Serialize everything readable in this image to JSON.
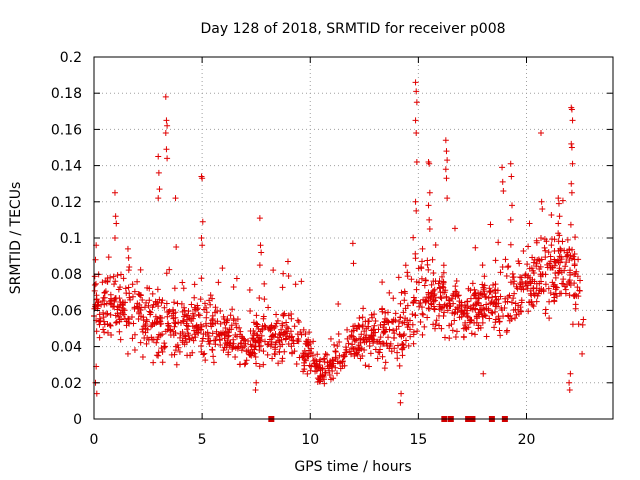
{
  "chart_data": {
    "type": "scatter",
    "title": "Day 128 of 2018, SRMTID for receiver p008",
    "xlabel": "GPS time / hours",
    "ylabel": "SRMTID / TECUs",
    "xlim": [
      0,
      24
    ],
    "ylim": [
      0,
      0.2
    ],
    "x_ticks": [
      0,
      5,
      10,
      15,
      20
    ],
    "x_tick_labels": [
      "0",
      "5",
      "10",
      "15",
      "20"
    ],
    "y_ticks": [
      0,
      0.02,
      0.04,
      0.06,
      0.08,
      0.1,
      0.12,
      0.14,
      0.16,
      0.18,
      0.2
    ],
    "y_tick_labels": [
      "0",
      "0.02",
      "0.04",
      "0.06",
      "0.08",
      "0.1",
      "0.12",
      "0.14",
      "0.16",
      "0.18",
      "0.2"
    ],
    "grid": true,
    "marker": "plus",
    "color": "#e00000",
    "trend": {
      "hours": [
        0,
        1,
        2,
        3,
        4,
        5,
        6,
        7,
        8,
        9,
        10,
        10.5,
        11,
        12,
        13,
        14,
        14.5,
        15,
        16,
        17,
        18,
        19,
        20,
        21,
        22,
        22.5
      ],
      "median_tecu": [
        0.062,
        0.062,
        0.058,
        0.052,
        0.05,
        0.052,
        0.046,
        0.042,
        0.045,
        0.047,
        0.037,
        0.025,
        0.032,
        0.043,
        0.045,
        0.048,
        0.055,
        0.07,
        0.068,
        0.058,
        0.063,
        0.066,
        0.076,
        0.08,
        0.08,
        0.068
      ],
      "spread_tecu": [
        0.014,
        0.016,
        0.018,
        0.02,
        0.015,
        0.017,
        0.012,
        0.011,
        0.012,
        0.012,
        0.01,
        0.006,
        0.009,
        0.011,
        0.012,
        0.014,
        0.02,
        0.02,
        0.017,
        0.012,
        0.014,
        0.016,
        0.018,
        0.02,
        0.022,
        0.012
      ]
    },
    "spikes": [
      {
        "hour": 0.1,
        "values": [
          0.088,
          0.096,
          0.014,
          0.02,
          0.029
        ]
      },
      {
        "hour": 1.0,
        "values": [
          0.125,
          0.112,
          0.108,
          0.1
        ]
      },
      {
        "hour": 1.6,
        "values": [
          0.094,
          0.089,
          0.084,
          0.036
        ]
      },
      {
        "hour": 3.0,
        "values": [
          0.145,
          0.136,
          0.127,
          0.122
        ]
      },
      {
        "hour": 3.35,
        "values": [
          0.178,
          0.165,
          0.162,
          0.158,
          0.149,
          0.144
        ]
      },
      {
        "hour": 3.8,
        "values": [
          0.122,
          0.095,
          0.03
        ]
      },
      {
        "hour": 5.0,
        "values": [
          0.134,
          0.133,
          0.109,
          0.1,
          0.096
        ]
      },
      {
        "hour": 7.5,
        "values": [
          0.016,
          0.02
        ]
      },
      {
        "hour": 7.7,
        "values": [
          0.111,
          0.096,
          0.092,
          0.085
        ]
      },
      {
        "hour": 9.0,
        "values": [
          0.087,
          0.079
        ]
      },
      {
        "hour": 12.0,
        "values": [
          0.097,
          0.086
        ]
      },
      {
        "hour": 14.2,
        "values": [
          0.009,
          0.014
        ]
      },
      {
        "hour": 14.9,
        "values": [
          0.186,
          0.181,
          0.175,
          0.165,
          0.158,
          0.142,
          0.12,
          0.115
        ]
      },
      {
        "hour": 15.5,
        "values": [
          0.142,
          0.141,
          0.125,
          0.118,
          0.11,
          0.105
        ]
      },
      {
        "hour": 16.3,
        "values": [
          0.154,
          0.148,
          0.143,
          0.138,
          0.133,
          0.122
        ]
      },
      {
        "hour": 18.0,
        "values": [
          0.085,
          0.025
        ]
      },
      {
        "hour": 18.9,
        "values": [
          0.139,
          0.131,
          0.126
        ]
      },
      {
        "hour": 19.3,
        "values": [
          0.141,
          0.134,
          0.118,
          0.11
        ]
      },
      {
        "hour": 20.7,
        "values": [
          0.158,
          0.12,
          0.116,
          0.1
        ]
      },
      {
        "hour": 21.5,
        "values": [
          0.122,
          0.119,
          0.112,
          0.108
        ]
      },
      {
        "hour": 22.1,
        "values": [
          0.172,
          0.171,
          0.165,
          0.152,
          0.15,
          0.141,
          0.13,
          0.125
        ]
      },
      {
        "hour": 22.0,
        "values": [
          0.02,
          0.016,
          0.025
        ]
      },
      {
        "hour": 22.6,
        "values": [
          0.036,
          0.052,
          0.055
        ]
      }
    ],
    "data_gaps_hours": [
      8.2,
      16.2,
      16.5,
      17.3,
      17.5,
      18.4,
      19.0
    ],
    "gap_marker_value": 0
  }
}
